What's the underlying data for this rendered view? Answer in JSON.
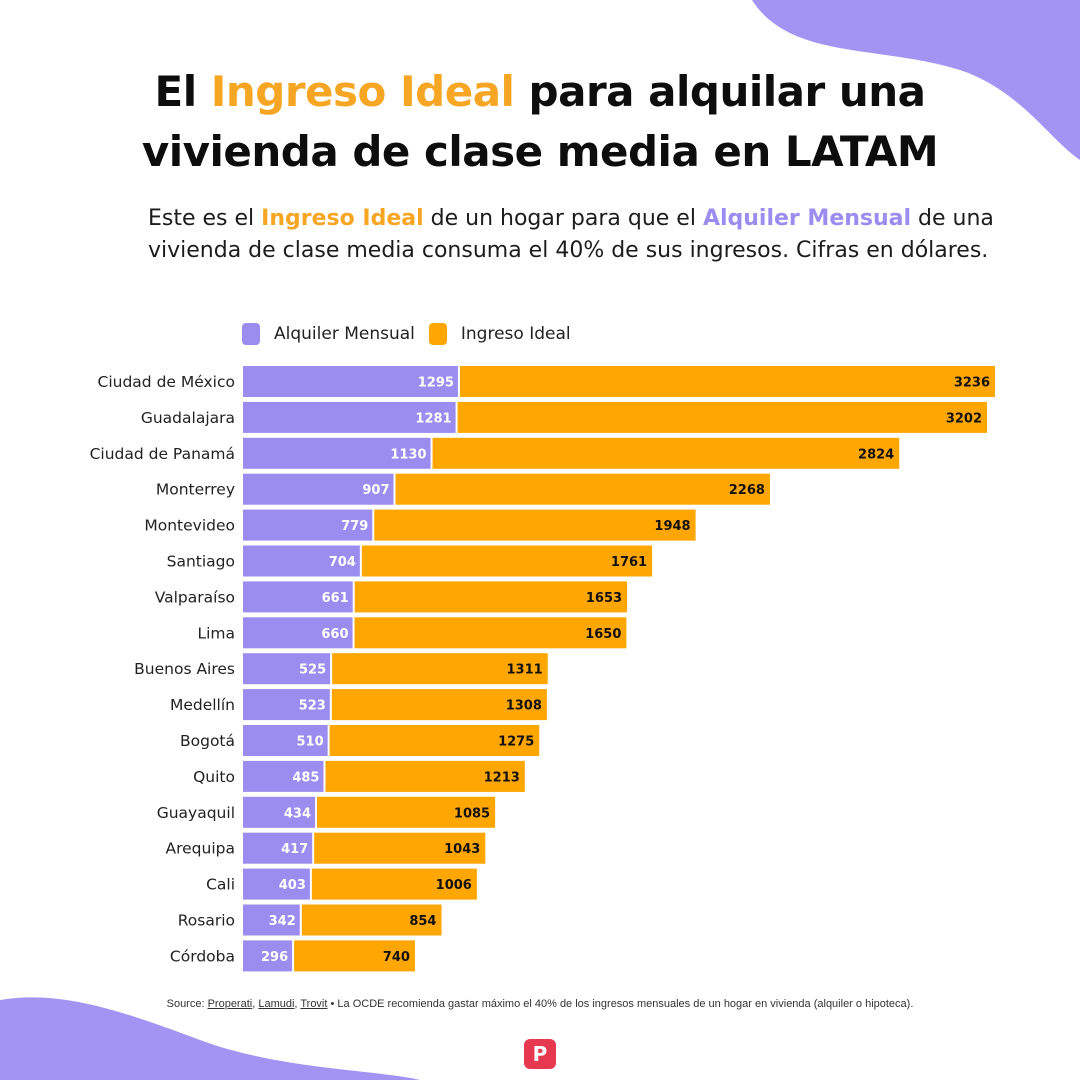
{
  "title": {
    "part1": "El ",
    "highlight": "Ingreso Ideal",
    "part2": " para alquilar una",
    "line2": "vivienda de clase media en LATAM"
  },
  "subtitle": {
    "p1": "Este es el ",
    "h1": "Ingreso Ideal",
    "p2": " de un hogar para que el ",
    "h2": "Alquiler Mensual",
    "p3": " de una vivienda de clase media consuma el 40% de sus ingresos. Cifras en dólares."
  },
  "colors": {
    "rent": "#9b8cf0",
    "income": "#ffa600",
    "accent_orange": "#f6a623",
    "blob": "#a394f3",
    "logo": "#e6394f"
  },
  "chart_data": {
    "type": "bar",
    "orientation": "horizontal",
    "stacked": true,
    "legend_position": "top",
    "grid": false,
    "categories": [
      "Ciudad de México",
      "Guadalajara",
      "Ciudad de Panamá",
      "Monterrey",
      "Montevideo",
      "Santiago",
      "Valparaíso",
      "Lima",
      "Buenos Aires",
      "Medellín",
      "Bogotá",
      "Quito",
      "Guayaquil",
      "Arequipa",
      "Cali",
      "Rosario",
      "Córdoba"
    ],
    "series": [
      {
        "name": "Alquiler Mensual",
        "values": [
          1295,
          1281,
          1130,
          907,
          779,
          704,
          661,
          660,
          525,
          523,
          510,
          485,
          434,
          417,
          403,
          342,
          296
        ]
      },
      {
        "name": "Ingreso Ideal",
        "values": [
          3236,
          3202,
          2824,
          2268,
          1948,
          1761,
          1653,
          1650,
          1311,
          1308,
          1275,
          1213,
          1085,
          1043,
          1006,
          854,
          740
        ]
      }
    ],
    "xlim": [
      0,
      4531
    ]
  },
  "source": {
    "prefix": "Source: ",
    "s1": "Properati",
    "sep1": ", ",
    "s2": "Lamudi",
    "sep2": ", ",
    "s3": "Trovit",
    "note": " • La OCDE recomienda gastar máximo el 40% de los ingresos mensuales de un hogar en vivienda (alquiler o hipoteca)."
  },
  "logo": {
    "letter": "P"
  }
}
